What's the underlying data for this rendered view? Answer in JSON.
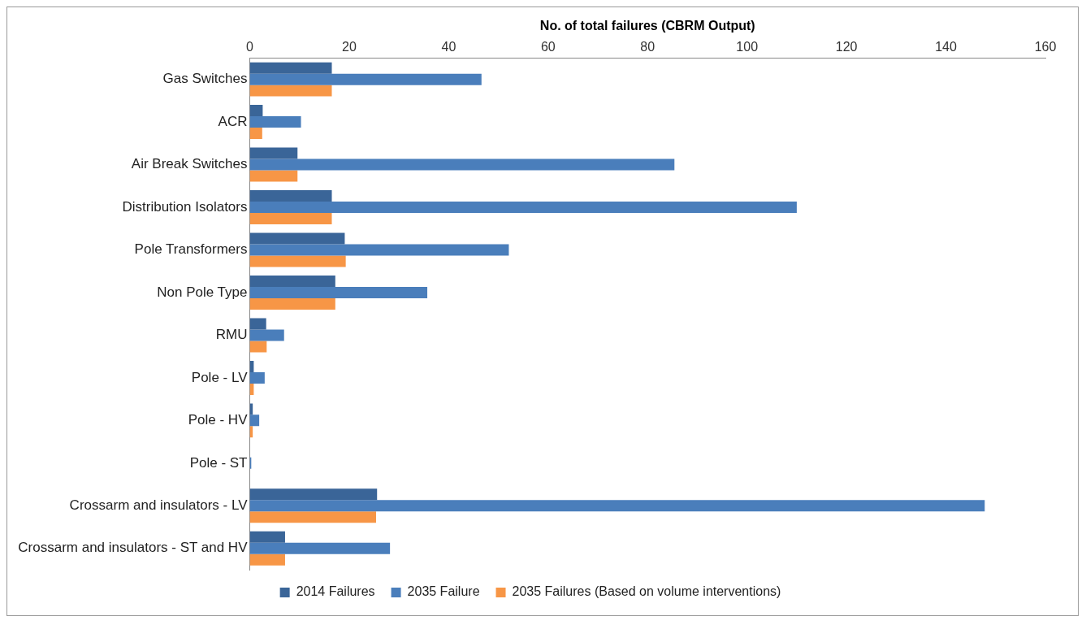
{
  "chart_data": {
    "type": "bar",
    "orientation": "horizontal",
    "xlabel": "No. of total failures (CBRM Output)",
    "categories": [
      "Gas Switches",
      "ACR",
      "Air Break Switches",
      "Distribution Isolators",
      "Pole Transformers",
      "Non Pole Type",
      "RMU",
      "Pole - LV",
      "Pole - HV",
      "Pole - ST",
      "Crossarm and insulators - LV",
      "Crossarm and insulators - ST and HV"
    ],
    "series": [
      {
        "name": "2014 Failures",
        "color": "#3a6598",
        "values": [
          16.5,
          2.6,
          9.6,
          16.5,
          19.1,
          17.2,
          3.3,
          0.8,
          0.6,
          null,
          25.6,
          7.1
        ]
      },
      {
        "name": "2035 Failure",
        "color": "#4a7ebb",
        "values": [
          46.6,
          10.3,
          85.4,
          110,
          52.1,
          35.7,
          6.9,
          3.0,
          1.9,
          0.3,
          147.8,
          28.2
        ]
      },
      {
        "name": "2035 Failures (Based on volume interventions)",
        "color": "#f79646",
        "values": [
          16.5,
          2.5,
          9.6,
          16.5,
          19.3,
          17.2,
          3.4,
          0.8,
          0.6,
          null,
          25.4,
          7.1
        ]
      }
    ],
    "xlim": [
      0,
      160
    ],
    "xticks": [
      0,
      20,
      40,
      60,
      80,
      100,
      120,
      140,
      160
    ],
    "grid": false,
    "legend": "bottom"
  }
}
